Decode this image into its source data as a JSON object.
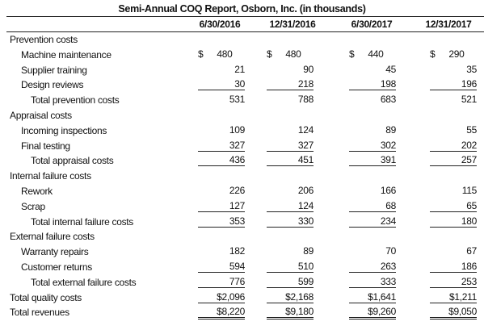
{
  "title": "Semi-Annual COQ Report, Osborn, Inc. (in thousands)",
  "table": {
    "columns": [
      "6/30/2016",
      "12/31/2016",
      "6/30/2017",
      "12/31/2017"
    ],
    "rows": [
      {
        "label": "Prevention costs"
      },
      {
        "label": "Machine maintenance",
        "values": [
          "$ 480",
          "$ 480",
          "$ 440",
          "$ 290"
        ]
      },
      {
        "label": "Supplier training",
        "values": [
          "21",
          "90",
          "45",
          "35"
        ]
      },
      {
        "label": "Design reviews",
        "values": [
          "30",
          "218",
          "198",
          "196"
        ]
      },
      {
        "label": "Total prevention costs",
        "values": [
          "531",
          "788",
          "683",
          "521"
        ]
      },
      {
        "label": "Appraisal costs"
      },
      {
        "label": "Incoming inspections",
        "values": [
          "109",
          "124",
          "89",
          "55"
        ]
      },
      {
        "label": "Final testing",
        "values": [
          "327",
          "327",
          "302",
          "202"
        ]
      },
      {
        "label": "Total appraisal costs",
        "values": [
          "436",
          "451",
          "391",
          "257"
        ]
      },
      {
        "label": "Internal failure costs"
      },
      {
        "label": "Rework",
        "values": [
          "226",
          "206",
          "166",
          "115"
        ]
      },
      {
        "label": "Scrap",
        "values": [
          "127",
          "124",
          "68",
          "65"
        ]
      },
      {
        "label": "Total internal failure costs",
        "values": [
          "353",
          "330",
          "234",
          "180"
        ]
      },
      {
        "label": "External failure costs"
      },
      {
        "label": "Warranty repairs",
        "values": [
          "182",
          "89",
          "70",
          "67"
        ]
      },
      {
        "label": "Customer returns",
        "values": [
          "594",
          "510",
          "263",
          "186"
        ]
      },
      {
        "label": "Total external failure costs",
        "values": [
          "776",
          "599",
          "333",
          "253"
        ]
      },
      {
        "label": "Total quality costs",
        "values": [
          "$2,096",
          "$2,168",
          "$1,641",
          "$1,211"
        ]
      },
      {
        "label": "Total revenues",
        "values": [
          "$8,220",
          "$9,180",
          "$9,260",
          "$9,050"
        ]
      }
    ]
  }
}
